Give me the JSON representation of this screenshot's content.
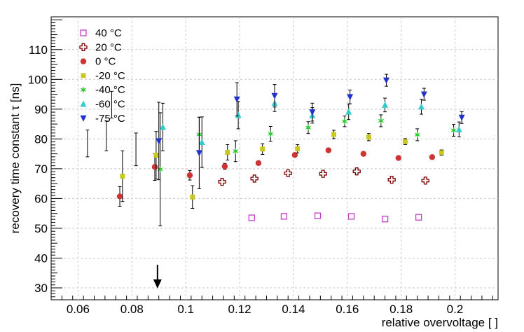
{
  "chart_data": {
    "type": "scatter",
    "xlabel": "relative overvoltage [ ]",
    "ylabel": "recovery time constant τ [ns]",
    "xlim": [
      0.05,
      0.216
    ],
    "ylim": [
      26,
      121
    ],
    "x_ticks": [
      0.06,
      0.08,
      0.1,
      0.12,
      0.14,
      0.16,
      0.18,
      0.2
    ],
    "x_tick_labels": [
      "0.06",
      "0.08",
      "0.1",
      "0.12",
      "0.14",
      "0.16",
      "0.18",
      "0.2"
    ],
    "y_ticks": [
      30,
      40,
      50,
      60,
      70,
      80,
      90,
      100,
      110
    ],
    "y_tick_labels": [
      "30",
      "40",
      "50",
      "60",
      "70",
      "80",
      "90",
      "100",
      "110"
    ],
    "arrow_annotation": {
      "x": 0.0895,
      "y_top": 34,
      "y_bottom": 30.5
    },
    "series": [
      {
        "name": "40 °C",
        "marker": "open-square",
        "color": "#c040c0",
        "points": [
          {
            "x": 0.1245,
            "y": 53.5,
            "err": 0.5
          },
          {
            "x": 0.1365,
            "y": 54.0,
            "err": 0.5
          },
          {
            "x": 0.149,
            "y": 54.2,
            "err": 0.5
          },
          {
            "x": 0.1615,
            "y": 54.0,
            "err": 0.5
          },
          {
            "x": 0.174,
            "y": 53.1,
            "err": 0.5
          },
          {
            "x": 0.1865,
            "y": 53.7,
            "err": 0.5
          }
        ]
      },
      {
        "name": "20 °C",
        "marker": "open-cross",
        "color": "#7a0000",
        "points": [
          {
            "x": 0.1135,
            "y": 65.6,
            "err": 0.6
          },
          {
            "x": 0.1255,
            "y": 66.7,
            "err": 0.6
          },
          {
            "x": 0.138,
            "y": 68.5,
            "err": 0.6
          },
          {
            "x": 0.151,
            "y": 68.3,
            "err": 0.6
          },
          {
            "x": 0.1635,
            "y": 69.1,
            "err": 0.6
          },
          {
            "x": 0.1765,
            "y": 66.3,
            "err": 0.6
          },
          {
            "x": 0.189,
            "y": 66.0,
            "err": 0.6
          }
        ]
      },
      {
        "name": " 0 °C",
        "marker": "filled-circle",
        "color": "#cc3333",
        "points": [
          {
            "x": 0.0755,
            "y": 60.7,
            "err": 3.3
          },
          {
            "x": 0.0885,
            "y": 70.6,
            "err": 4.5
          },
          {
            "x": 0.1015,
            "y": 67.8,
            "err": 1.6
          },
          {
            "x": 0.1145,
            "y": 70.8,
            "err": 1.0
          },
          {
            "x": 0.127,
            "y": 71.9,
            "err": 0.6
          },
          {
            "x": 0.1405,
            "y": 74.6,
            "err": 0.6
          },
          {
            "x": 0.153,
            "y": 76.2,
            "err": 0.6
          },
          {
            "x": 0.166,
            "y": 75.0,
            "err": 0.6
          },
          {
            "x": 0.179,
            "y": 73.6,
            "err": 0.6
          },
          {
            "x": 0.1915,
            "y": 73.9,
            "err": 0.6
          }
        ]
      },
      {
        "name": "-20 °C",
        "marker": "filled-square",
        "color": "#c8c820",
        "points": [
          {
            "x": 0.0765,
            "y": 67.5,
            "err": 8.5
          },
          {
            "x": 0.089,
            "y": 74.5,
            "err": 8.0
          },
          {
            "x": 0.1025,
            "y": 60.5,
            "err": 3.8
          },
          {
            "x": 0.1155,
            "y": 75.5,
            "err": 2.6
          },
          {
            "x": 0.1285,
            "y": 76.6,
            "err": 1.8
          },
          {
            "x": 0.1415,
            "y": 76.7,
            "err": 1.4
          },
          {
            "x": 0.155,
            "y": 81.5,
            "err": 1.4
          },
          {
            "x": 0.168,
            "y": 80.6,
            "err": 1.2
          },
          {
            "x": 0.1815,
            "y": 79.1,
            "err": 1.0
          },
          {
            "x": 0.195,
            "y": 75.4,
            "err": 0.9
          }
        ]
      },
      {
        "name": "-40 °C",
        "marker": "star",
        "color": "#33cc33",
        "points": [
          {
            "x": 0.0905,
            "y": 69.8,
            "err": 19.0
          },
          {
            "x": 0.105,
            "y": 81.5,
            "err": 5.8
          },
          {
            "x": 0.1185,
            "y": 75.9,
            "err": 3.5
          },
          {
            "x": 0.1315,
            "y": 81.7,
            "err": 2.5
          },
          {
            "x": 0.1455,
            "y": 83.8,
            "err": 2.0
          },
          {
            "x": 0.159,
            "y": 85.9,
            "err": 1.8
          },
          {
            "x": 0.1725,
            "y": 86.1,
            "err": 2.0
          },
          {
            "x": 0.186,
            "y": 81.4,
            "err": 2.0
          },
          {
            "x": 0.1995,
            "y": 82.9,
            "err": 2.0
          }
        ]
      },
      {
        "name": "-60 °C",
        "marker": "triangle-up",
        "color": "#33cccc",
        "points": [
          {
            "x": 0.0915,
            "y": 84.0,
            "err": 8.0
          },
          {
            "x": 0.106,
            "y": 78.9,
            "err": 8.5
          },
          {
            "x": 0.1195,
            "y": 88.0,
            "err": 4.6
          },
          {
            "x": 0.133,
            "y": 92.0,
            "err": 2.8
          },
          {
            "x": 0.147,
            "y": 87.9,
            "err": 2.6
          },
          {
            "x": 0.1605,
            "y": 89.1,
            "err": 2.6
          },
          {
            "x": 0.174,
            "y": 91.4,
            "err": 2.3
          },
          {
            "x": 0.1875,
            "y": 90.8,
            "err": 2.5
          },
          {
            "x": 0.2015,
            "y": 83.2,
            "err": 2.5
          }
        ]
      },
      {
        "name": "-75 °C",
        "marker": "triangle-down",
        "color": "#2233cc",
        "points": [
          {
            "x": 0.09,
            "y": 79.3,
            "err": 13.0
          },
          {
            "x": 0.105,
            "y": 75.3,
            "err": 12.0
          },
          {
            "x": 0.119,
            "y": 93.3,
            "err": 5.6
          },
          {
            "x": 0.133,
            "y": 94.5,
            "err": 3.8
          },
          {
            "x": 0.147,
            "y": 89.0,
            "err": 3.0
          },
          {
            "x": 0.161,
            "y": 94.1,
            "err": 2.3
          },
          {
            "x": 0.1745,
            "y": 99.7,
            "err": 2.0
          },
          {
            "x": 0.1885,
            "y": 95.0,
            "err": 2.0
          },
          {
            "x": 0.2025,
            "y": 87.2,
            "err": 2.0
          }
        ]
      }
    ],
    "extra_error_bars": [
      {
        "x": 0.0635,
        "y_low": 74,
        "y_high": 83
      },
      {
        "x": 0.0705,
        "y_low": 76,
        "y_high": 86
      },
      {
        "x": 0.0815,
        "y_low": 71,
        "y_high": 82
      },
      {
        "x": 0.0725,
        "y_low": 87,
        "y_high": 96
      }
    ]
  }
}
